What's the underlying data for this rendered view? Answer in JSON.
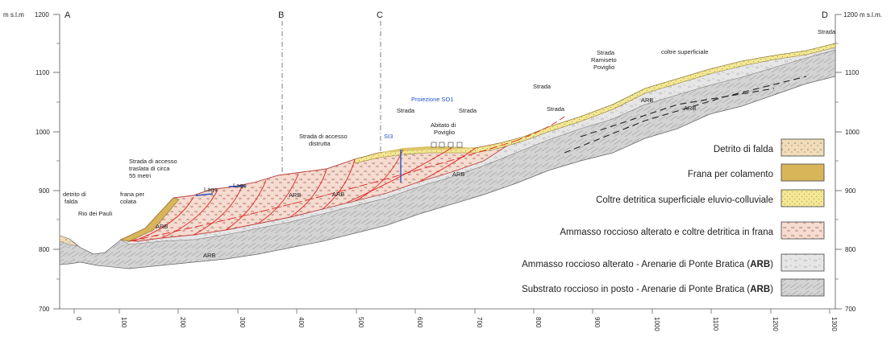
{
  "axes": {
    "left_unit": "m s.l.m",
    "left_top": "1200",
    "right_top": "1200 m s.l.m.",
    "y_ticks": [
      "1100",
      "1000",
      "900",
      "800",
      "700"
    ],
    "x_ticks": [
      "0",
      "100",
      "200",
      "300",
      "400",
      "500",
      "600",
      "700",
      "800",
      "900",
      "1000",
      "1100",
      "1200",
      "1300"
    ]
  },
  "section_marks": {
    "A": "A",
    "B": "B",
    "C": "C",
    "D": "D"
  },
  "labels": {
    "detrito_falda": [
      "detrito di",
      "falda"
    ],
    "rio": "Rio dei Pauli",
    "frana_colata": [
      "frana per",
      "colata"
    ],
    "strada_traslata": [
      "Strada di accesso",
      "traslata di circa",
      "55 metri"
    ],
    "lago1": "Lago",
    "lago2": "Lago",
    "arb_low1": "ARB",
    "arb_mid": "ARB",
    "arb_low2": "ARB",
    "strada_distrutta": [
      "Strada di accesso",
      "distrutta"
    ],
    "si3": "SI3",
    "proiezione": "Proiezione SO1",
    "strada1": "Strada",
    "abitato": [
      "Abitato di",
      "Poviglio"
    ],
    "strada2": "Strada",
    "arb_c": "ARB",
    "strada3": "Strada",
    "strada4": "Strada",
    "strada_ramiseto": [
      "Strada",
      "Ramiseto",
      "Poviglio"
    ],
    "arb_r1": "ARB",
    "arb_r2": "ARB",
    "coltre": "coltre superficiale",
    "strada_top": "Strada"
  },
  "legend": [
    {
      "label": "Detrito di falda",
      "pattern": "detrito",
      "color": "#f0dcb8"
    },
    {
      "label": "Frana per colamento",
      "pattern": "frana",
      "color": "#d9b55a"
    },
    {
      "label": "Coltre detritica superficiale eluvio-colluviale",
      "pattern": "coltre",
      "color": "#f3e694"
    },
    {
      "label": "Ammasso roccioso alterato e coltre detritica in frana",
      "pattern": "ammasso_frana",
      "color": "#f5dbd0"
    },
    {
      "label_pre": "Ammasso roccioso alterato -  Arenarie di Ponte Bratica (",
      "label_bold": "ARB",
      "label_post": ")",
      "pattern": "alterato",
      "color": "#e4e4e4"
    },
    {
      "label_pre": "Substrato roccioso in posto - Arenarie di Ponte Bratica (",
      "label_bold": "ARB",
      "label_post": ")",
      "pattern": "substrato",
      "color": "#d6d6d6"
    }
  ],
  "colors": {
    "rock": "#d3d3d3",
    "altered": "#e6e6e6",
    "slide": "#f5dbd0",
    "coltre": "#dcc46a",
    "fault": "#e02020",
    "borehole": "#2255cc"
  }
}
